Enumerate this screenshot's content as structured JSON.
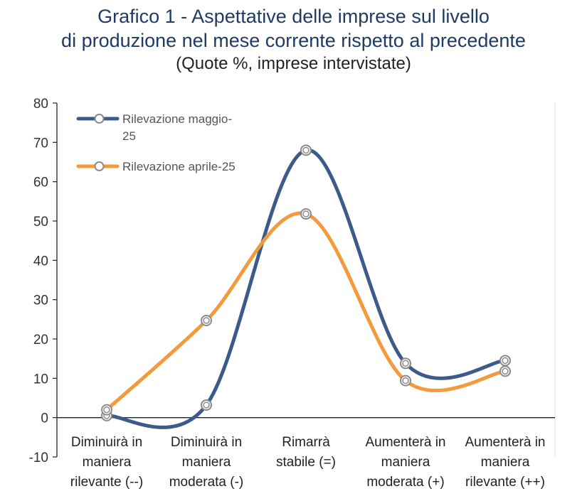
{
  "chart_data": {
    "type": "line",
    "title_line1": "Grafico 1 - Aspettative delle imprese sul livello",
    "title_line2": "di produzione nel mese corrente rispetto al precedente",
    "subtitle": "(Quote %, imprese intervistate)",
    "categories": [
      [
        "Diminuirà in",
        "maniera",
        "rilevante (--)"
      ],
      [
        "Diminuirà in",
        "maniera",
        "moderata (-)"
      ],
      [
        "Rimarrà",
        "stabile (=)"
      ],
      [
        "Aumenterà in",
        "maniera",
        "moderata (+)"
      ],
      [
        "Aumenterà in",
        "maniera",
        "rilevante (++)"
      ]
    ],
    "series": [
      {
        "name": "Rilevazione maggio-25",
        "name_lines": [
          "Rilevazione maggio-",
          "25"
        ],
        "color": "#3c5a8a",
        "values": [
          0.5,
          3.2,
          68.0,
          13.8,
          14.5
        ]
      },
      {
        "name": "Rilevazione aprile-25",
        "name_lines": [
          "Rilevazione aprile-25"
        ],
        "color": "#f39a3c",
        "values": [
          2.0,
          24.7,
          51.8,
          9.4,
          11.8
        ]
      }
    ],
    "ylim": [
      -10,
      80
    ],
    "yticks": [
      80,
      70,
      60,
      50,
      40,
      30,
      20,
      10,
      0,
      -10
    ],
    "grid": false,
    "legend_position": "top-left"
  }
}
